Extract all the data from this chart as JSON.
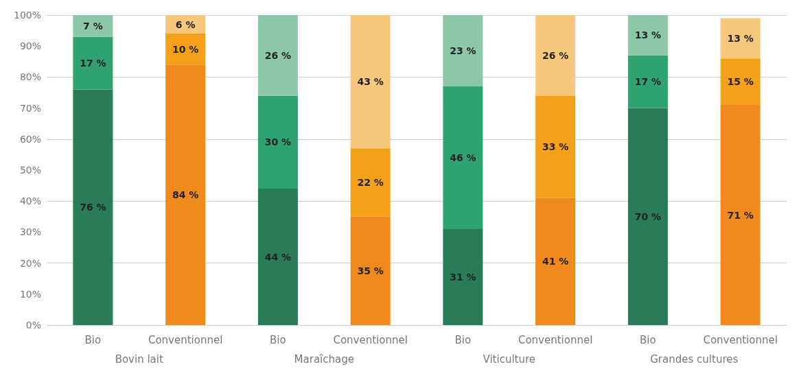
{
  "chart_data": {
    "type": "bar",
    "stacked": true,
    "categories": [
      "Bio",
      "Conventionnel",
      "Bio",
      "Conventionnel",
      "Bio",
      "Conventionnel",
      "Bio",
      "Conventionnel"
    ],
    "annotations": [
      "Bovin lait",
      "Maraîchage",
      "Viticulture",
      "Grandes cultures"
    ],
    "series": [
      {
        "colors": [
          "#2a7b58",
          "#f08a1c",
          "#2a7b58",
          "#f08a1c",
          "#2a7b58",
          "#f08a1c",
          "#2a7b58",
          "#f08a1c"
        ],
        "values": [
          76,
          84,
          44,
          35,
          31,
          41,
          70,
          71
        ],
        "value_labels": [
          "76 %",
          "84 %",
          "44 %",
          "35 %",
          "31 %",
          "41 %",
          "70 %",
          "71 %"
        ]
      },
      {
        "colors": [
          "#2fa272",
          "#f4a019",
          "#2fa272",
          "#f4a019",
          "#2fa272",
          "#f4a019",
          "#2fa272",
          "#f4a019"
        ],
        "values": [
          17,
          10,
          30,
          22,
          46,
          33,
          17,
          15
        ],
        "value_labels": [
          "17 %",
          "10 %",
          "30 %",
          "22 %",
          "46 %",
          "33 %",
          "17 %",
          "15 %"
        ]
      },
      {
        "colors": [
          "#8cc7a8",
          "#f7c77c",
          "#8cc7a8",
          "#f7c77c",
          "#8cc7a8",
          "#f7c77c",
          "#8cc7a8",
          "#f7c77c"
        ],
        "values": [
          7,
          6,
          26,
          43,
          23,
          26,
          13,
          13
        ],
        "value_labels": [
          "7 %",
          "6 %",
          "26 %",
          "43 %",
          "23 %",
          "26 %",
          "13 %",
          "13 %"
        ]
      }
    ],
    "ylim": [
      0,
      100
    ],
    "yticks": [
      {
        "value": 0,
        "label": "0%"
      },
      {
        "value": 10,
        "label": "10%"
      },
      {
        "value": 20,
        "label": "20%"
      },
      {
        "value": 30,
        "label": "30%"
      },
      {
        "value": 40,
        "label": "40%"
      },
      {
        "value": 50,
        "label": "50%"
      },
      {
        "value": 60,
        "label": "60%"
      },
      {
        "value": 70,
        "label": "70%"
      },
      {
        "value": 80,
        "label": "80%"
      },
      {
        "value": 90,
        "label": "90%"
      },
      {
        "value": 100,
        "label": "100%"
      }
    ],
    "grid": true
  }
}
